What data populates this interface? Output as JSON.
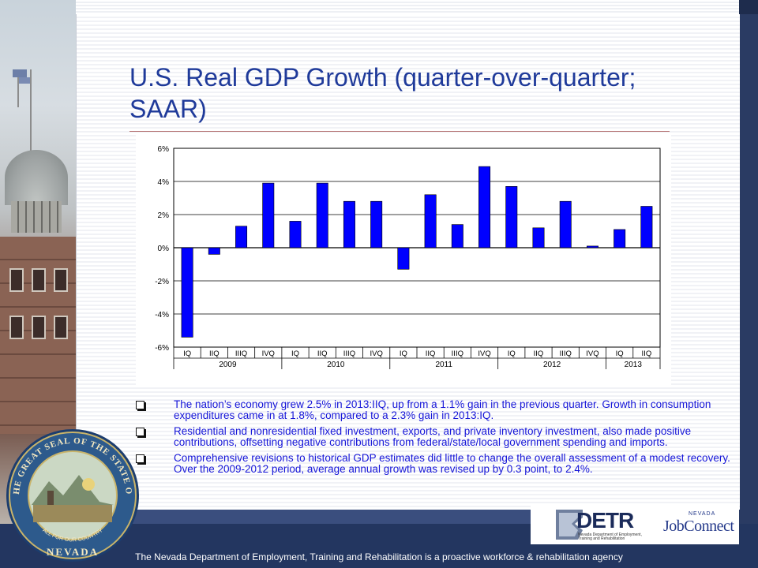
{
  "slide": {
    "title": "U.S. Real GDP Growth (quarter-over-quarter; SAAR)",
    "bullets": [
      "The nation’s economy grew 2.5% in 2013:IIQ, up from a 1.1% gain in the previous quarter.  Growth in consumption expenditures came in at 1.8%, compared to a 2.3% gain in 2013:IQ.",
      "Residential and nonresidential fixed investment, exports, and private inventory investment, also made positive contributions, offsetting negative contributions from federal/state/local government spending and imports.",
      "Comprehensive revisions to historical GDP estimates did little to change the overall assessment of a modest recovery.  Over the 2009-2012 period, average annual growth was revised up by 0.3 point, to 2.4%."
    ]
  },
  "chart_data": {
    "type": "bar",
    "title": "",
    "xlabel": "",
    "ylabel": "",
    "ylim": [
      -6,
      6
    ],
    "yticks": [
      "6%",
      "4%",
      "2%",
      "0%",
      "-2%",
      "-4%",
      "-6%"
    ],
    "ytick_values": [
      6,
      4,
      2,
      0,
      -2,
      -4,
      -6
    ],
    "grid": true,
    "bar_color": "#0000ff",
    "categories": [
      "IQ",
      "IIQ",
      "IIIQ",
      "IVQ",
      "IQ",
      "IIQ",
      "IIIQ",
      "IVQ",
      "IQ",
      "IIQ",
      "IIIQ",
      "IVQ",
      "IQ",
      "IIQ",
      "IIIQ",
      "IVQ",
      "IQ",
      "IIQ"
    ],
    "years": [
      {
        "label": "2009",
        "count": 4
      },
      {
        "label": "2010",
        "count": 4
      },
      {
        "label": "2011",
        "count": 4
      },
      {
        "label": "2012",
        "count": 4
      },
      {
        "label": "2013",
        "count": 2
      }
    ],
    "values": [
      -5.4,
      -0.4,
      1.3,
      3.9,
      1.6,
      3.9,
      2.8,
      2.8,
      -1.3,
      3.2,
      1.4,
      4.9,
      3.7,
      1.2,
      2.8,
      0.1,
      1.1,
      2.5
    ]
  },
  "footer": {
    "text": "The Nevada Department of Employment, Training and Rehabilitation is a proactive workforce & rehabilitation agency"
  },
  "logos": {
    "detr": "DETR",
    "detr_subtitle": "Nevada Department of Employment, Training and Rehabilitation",
    "jobconnect_state": "NEVADA",
    "jobconnect": "JobConnect"
  },
  "seal": {
    "outer_text": "THE GREAT SEAL OF THE STATE OF",
    "bottom_text": "NEVADA",
    "motto": "ALL FOR OUR COUNTRY"
  },
  "colors": {
    "title": "#1f3a9a",
    "bullets": "#1515d8",
    "footer_band": "#233660",
    "bars": "#0000ff"
  }
}
